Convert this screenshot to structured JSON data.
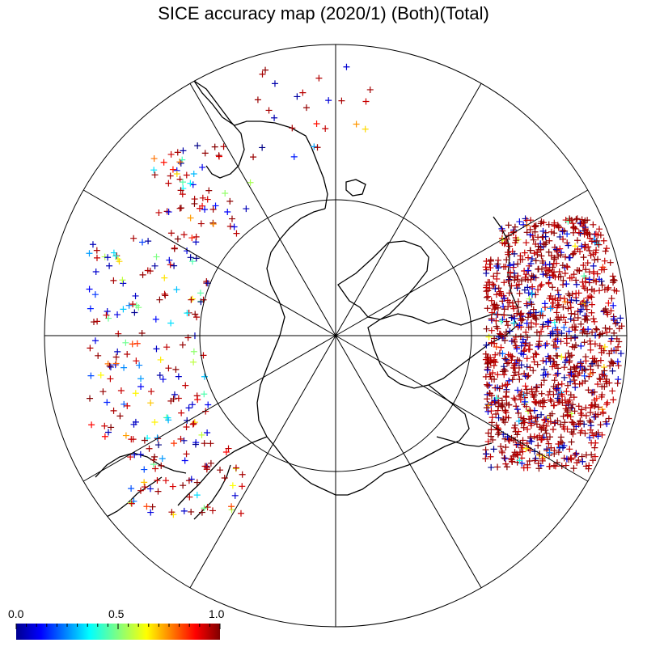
{
  "title": "SICE accuracy map (2020/1) (Both)(Total)",
  "colorbar": {
    "min_label": "0.0",
    "mid_label": "0.5",
    "max_label": "1.0",
    "colormap": "jet",
    "range": [
      0.0,
      1.0
    ]
  },
  "map": {
    "projection": "north-polar-stereographic",
    "meridian_spacing_deg": 30,
    "latitude_circle_deg": 60,
    "marker": "plus",
    "marker_color_meaning": "accuracy"
  },
  "colors": {
    "high_accuracy": "#8b0000",
    "low_accuracy": "#00008b",
    "coastline": "#000000",
    "grid": "#000000"
  }
}
